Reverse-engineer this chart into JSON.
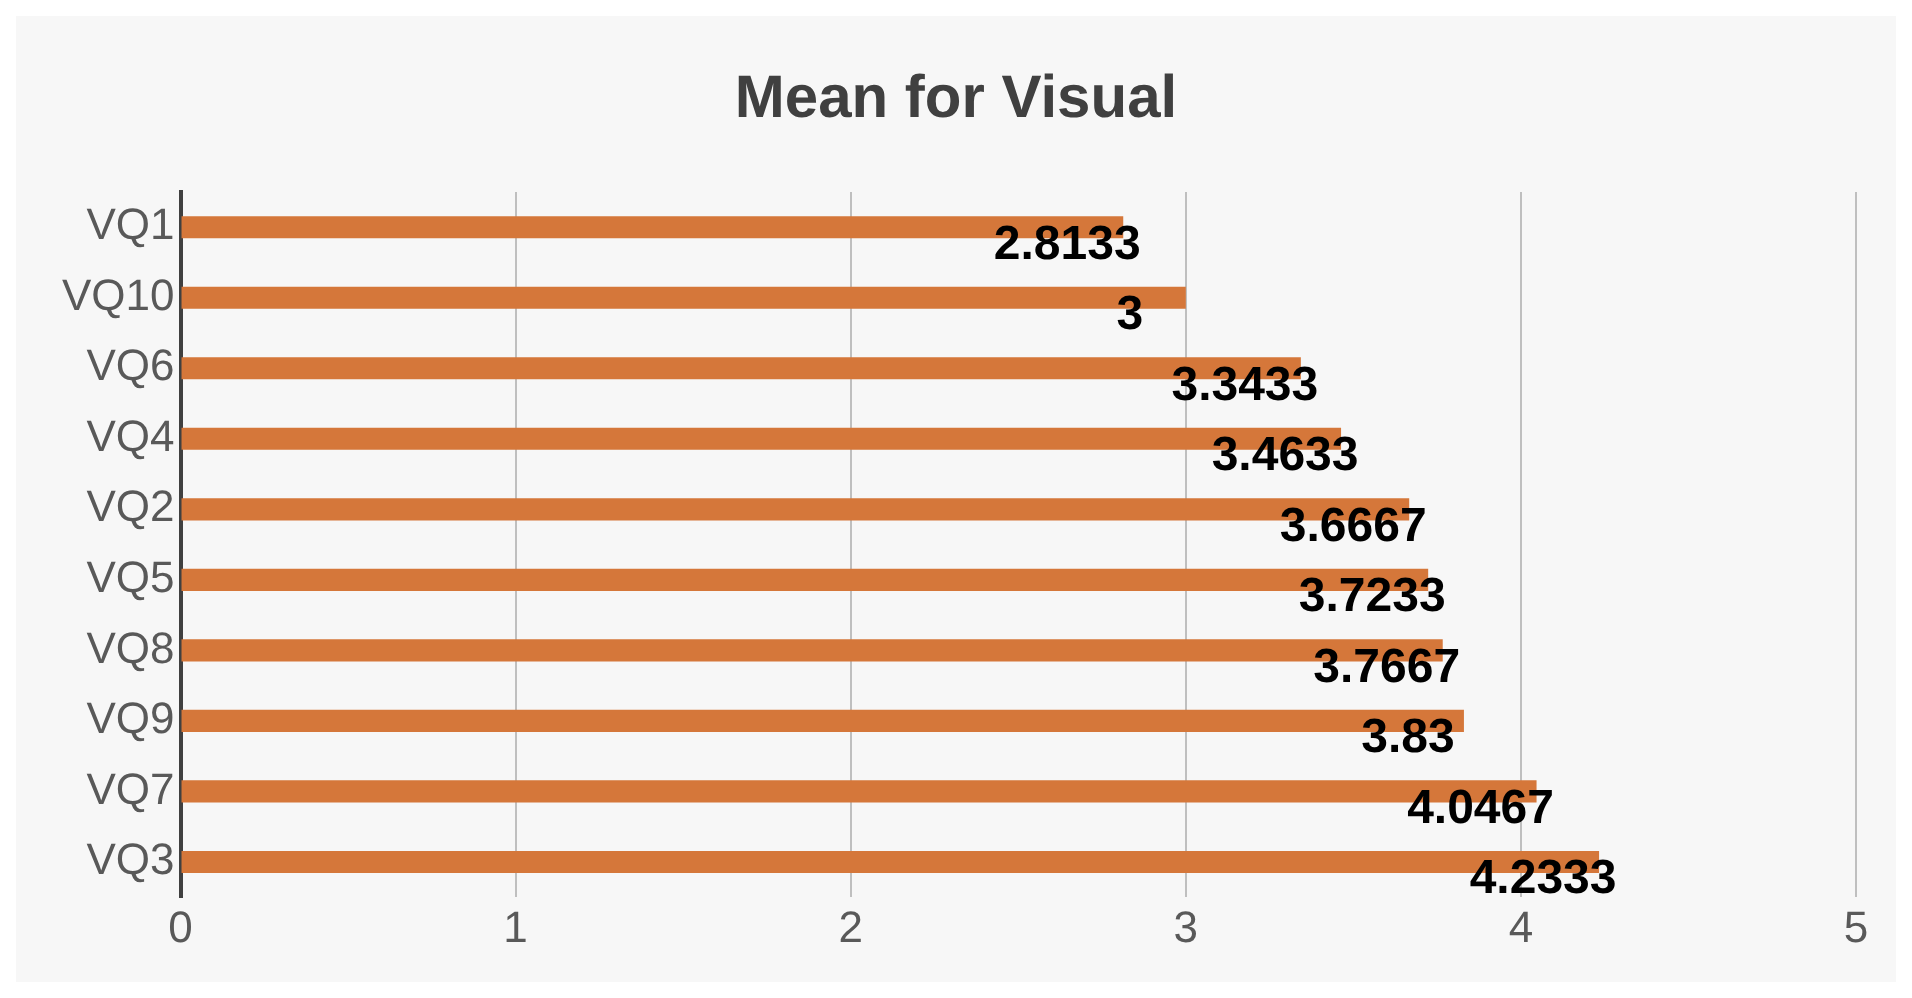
{
  "chart_data": {
    "type": "bar",
    "title": "Mean for Visual",
    "orientation": "horizontal",
    "categories": [
      "VQ1",
      "VQ10",
      "VQ6",
      "VQ4",
      "VQ2",
      "VQ5",
      "VQ8",
      "VQ9",
      "VQ7",
      "VQ3"
    ],
    "values": [
      2.8133,
      3,
      3.3433,
      3.4633,
      3.6667,
      3.7233,
      3.7667,
      3.83,
      4.0467,
      4.2333
    ],
    "color": "#d5773a",
    "xlim": [
      0,
      5
    ],
    "xticks": [
      0,
      1,
      2,
      3,
      4,
      5
    ],
    "grid": "x",
    "data_labels": true
  }
}
